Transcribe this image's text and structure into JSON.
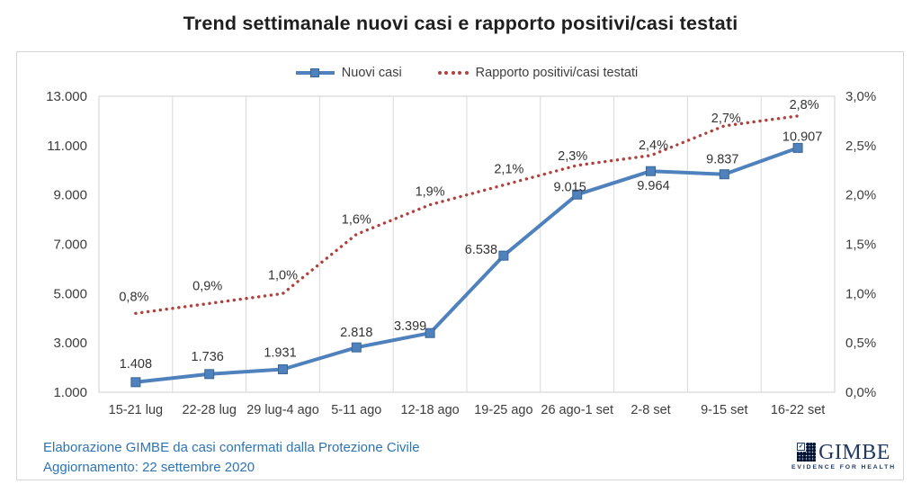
{
  "title": "Trend settimanale nuovi casi e rapporto positivi/casi testati",
  "footer": {
    "line1": "Elaborazione GIMBE da casi confermati dalla Protezione Civile",
    "line2": "Aggiornamento: 22 settembre 2020"
  },
  "logo": {
    "name": "GIMBE",
    "tagline": "EVIDENCE FOR HEALTH",
    "check_glyph": "✓"
  },
  "colors": {
    "series_blue": "#4F81BD",
    "series_blue_border": "#3A6596",
    "series_red": "#B0413C",
    "grid": "#D9D9D9",
    "plot_border": "#CFCFCF",
    "tick_text": "#3D3D3D",
    "label_text": "#333333",
    "footer_blue": "#2E74B5",
    "logo_navy": "#1F3864"
  },
  "chart_data": {
    "type": "line",
    "title": "Trend settimanale nuovi casi e rapporto positivi/casi testati",
    "categories": [
      "15-21 lug",
      "22-28 lug",
      "29 lug-4 ago",
      "5-11 ago",
      "12-18 ago",
      "19-25 ago",
      "26 ago-1 set",
      "2-8 set",
      "9-15 set",
      "16-22 set"
    ],
    "series": [
      {
        "name": "Nuovi casi",
        "axis": "left",
        "style": "solid-line-square-markers",
        "color": "#4F81BD",
        "values": [
          1408,
          1736,
          1931,
          2818,
          3399,
          6538,
          9015,
          9964,
          9837,
          10907
        ],
        "labels": [
          "1.408",
          "1.736",
          "1.931",
          "2.818",
          "3.399",
          "6.538",
          "9.015",
          "9.964",
          "9.837",
          "10.907"
        ]
      },
      {
        "name": "Rapporto positivi/casi testati",
        "axis": "right",
        "style": "dotted-line",
        "color": "#B0413C",
        "values": [
          0.8,
          0.9,
          1.0,
          1.6,
          1.9,
          2.1,
          2.3,
          2.4,
          2.7,
          2.8
        ],
        "labels": [
          "0,8%",
          "0,9%",
          "1,0%",
          "1,6%",
          "1,9%",
          "2,1%",
          "2,3%",
          "2,4%",
          "2,7%",
          "2,8%"
        ]
      }
    ],
    "left_axis": {
      "min": 1000,
      "max": 13000,
      "step": 2000,
      "tick_labels": [
        "1.000",
        "3.000",
        "5.000",
        "7.000",
        "9.000",
        "11.000",
        "13.000"
      ]
    },
    "right_axis": {
      "min": 0,
      "max": 3,
      "step": 0.5,
      "tick_labels": [
        "0,0%",
        "0,5%",
        "1,0%",
        "1,5%",
        "2,0%",
        "2,5%",
        "3,0%"
      ]
    },
    "grid": "vertical-only",
    "legend_position": "top-center"
  }
}
